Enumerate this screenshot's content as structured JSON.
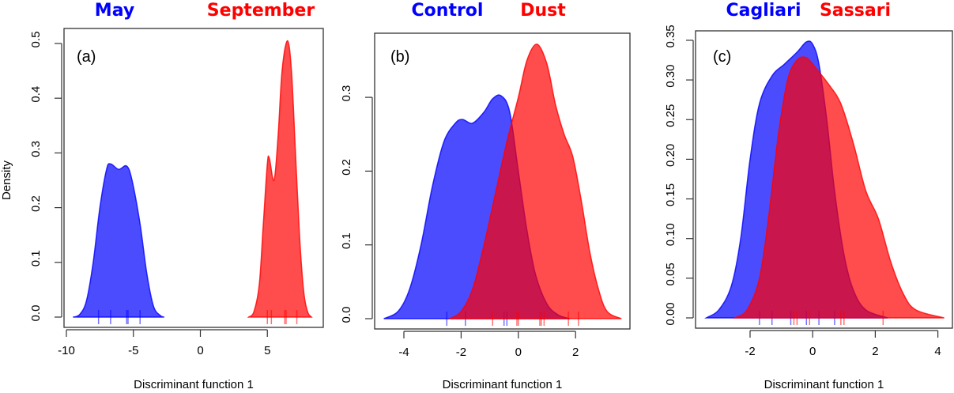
{
  "colors": {
    "group1": "#0000ff",
    "group2": "#ff0000"
  },
  "chart_data": [
    {
      "type": "area",
      "panel_label": "(a)",
      "xlabel": "Discriminant function 1",
      "ylabel": "Density",
      "xlim": [
        -10,
        8.5
      ],
      "ylim": [
        0,
        0.5
      ],
      "xticks": [
        -10,
        -5,
        0,
        5
      ],
      "yticks": [
        "0.0",
        "0.1",
        "0.2",
        "0.3",
        "0.4",
        "0.5"
      ],
      "grid": false,
      "series": [
        {
          "name": "May",
          "color": "#0000ff",
          "x": [
            -9.5,
            -9,
            -8.5,
            -8,
            -7.5,
            -7,
            -6.7,
            -6.1,
            -5.5,
            -5.1,
            -4.5,
            -4,
            -3.5,
            -3,
            -2.7
          ],
          "y": [
            0,
            0.005,
            0.03,
            0.1,
            0.2,
            0.27,
            0.28,
            0.27,
            0.276,
            0.25,
            0.17,
            0.08,
            0.02,
            0.003,
            0
          ],
          "rug": [
            -7.6,
            -6.7,
            -5.5,
            -5.4,
            -4.5
          ]
        },
        {
          "name": "September",
          "color": "#ff0000",
          "x": [
            3.6,
            4,
            4.4,
            4.7,
            5.0,
            5.15,
            5.5,
            5.8,
            6.1,
            6.5,
            6.8,
            7.1,
            7.4,
            7.7,
            8,
            8.3
          ],
          "y": [
            0,
            0.01,
            0.06,
            0.17,
            0.28,
            0.29,
            0.25,
            0.33,
            0.45,
            0.505,
            0.45,
            0.3,
            0.15,
            0.05,
            0.01,
            0
          ],
          "rug": [
            5.0,
            5.3,
            6.3,
            6.4,
            7.2
          ]
        }
      ]
    },
    {
      "type": "area",
      "panel_label": "(b)",
      "xlabel": "Discriminant function 1",
      "ylabel": "",
      "xlim": [
        -4.8,
        3.7
      ],
      "ylim": [
        0,
        0.37
      ],
      "xticks": [
        -4,
        -2,
        0,
        2
      ],
      "yticks": [
        "0.0",
        "0.1",
        "0.2",
        "0.3"
      ],
      "grid": false,
      "series": [
        {
          "name": "Control",
          "color": "#0000ff",
          "x": [
            -4.7,
            -4.2,
            -3.8,
            -3.4,
            -3,
            -2.6,
            -2.2,
            -1.95,
            -1.6,
            -1.2,
            -0.9,
            -0.6,
            -0.3,
            0,
            0.3,
            0.6,
            1,
            1.4,
            1.8
          ],
          "y": [
            0,
            0.01,
            0.04,
            0.1,
            0.18,
            0.24,
            0.265,
            0.27,
            0.265,
            0.28,
            0.298,
            0.302,
            0.28,
            0.2,
            0.12,
            0.06,
            0.02,
            0.005,
            0
          ],
          "rug": [
            -2.5,
            -1.85,
            -0.5,
            -0.4
          ]
        },
        {
          "name": "Dust",
          "color": "#ff0000",
          "x": [
            -2.4,
            -2,
            -1.6,
            -1.2,
            -0.8,
            -0.4,
            0,
            0.3,
            0.65,
            1,
            1.3,
            1.6,
            1.9,
            2.2,
            2.5,
            2.8,
            3.1,
            3.6
          ],
          "y": [
            0,
            0.01,
            0.04,
            0.1,
            0.17,
            0.24,
            0.3,
            0.35,
            0.372,
            0.345,
            0.29,
            0.25,
            0.22,
            0.16,
            0.09,
            0.04,
            0.01,
            0
          ],
          "rug": [
            -0.9,
            -0.05,
            0,
            0.75,
            0.8,
            0.9,
            1.75,
            2.1
          ]
        }
      ]
    },
    {
      "type": "area",
      "panel_label": "(c)",
      "xlabel": "Discriminant function 1",
      "ylabel": "",
      "xlim": [
        -3.5,
        4.3
      ],
      "ylim": [
        0,
        0.35
      ],
      "xticks": [
        -2,
        0,
        2,
        4
      ],
      "yticks": [
        "0.00",
        "0.05",
        "0.10",
        "0.15",
        "0.20",
        "0.25",
        "0.30",
        "0.35"
      ],
      "grid": false,
      "series": [
        {
          "name": "Cagliari",
          "color": "#0000ff",
          "x": [
            -3.4,
            -3,
            -2.6,
            -2.3,
            -2,
            -1.7,
            -1.3,
            -0.9,
            -0.5,
            -0.2,
            0,
            0.2,
            0.45,
            0.7,
            1,
            1.3,
            1.7,
            2.4
          ],
          "y": [
            0,
            0.01,
            0.04,
            0.1,
            0.2,
            0.27,
            0.305,
            0.32,
            0.335,
            0.348,
            0.345,
            0.32,
            0.25,
            0.16,
            0.08,
            0.035,
            0.01,
            0
          ],
          "rug": [
            -1.7,
            -1.3,
            -0.7,
            -0.2,
            0.2,
            0.7
          ]
        },
        {
          "name": "Sassari",
          "color": "#ff0000",
          "x": [
            -2.5,
            -2.1,
            -1.7,
            -1.4,
            -1.1,
            -0.8,
            -0.5,
            -0.2,
            0.1,
            0.5,
            0.9,
            1.3,
            1.7,
            2.1,
            2.5,
            2.9,
            3.3,
            4.2
          ],
          "y": [
            0,
            0.01,
            0.05,
            0.13,
            0.23,
            0.3,
            0.325,
            0.328,
            0.315,
            0.295,
            0.27,
            0.22,
            0.16,
            0.125,
            0.07,
            0.03,
            0.01,
            0
          ],
          "rug": [
            -0.6,
            -0.5,
            -0.1,
            0.9,
            1.0,
            2.25
          ]
        }
      ]
    }
  ]
}
